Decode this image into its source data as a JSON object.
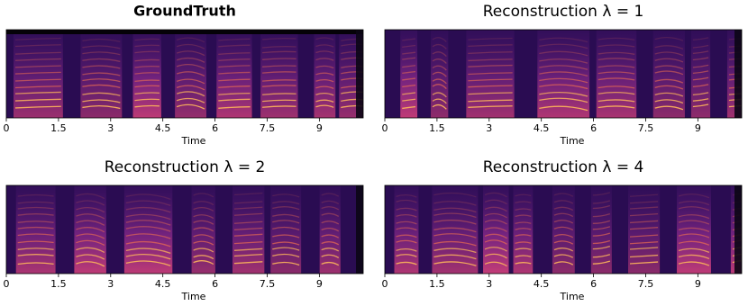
{
  "chart_data": [
    {
      "type": "spectrogram",
      "title": "GroundTruth",
      "xlabel": "Time",
      "xlim": [
        0,
        10.26
      ],
      "xticks": [
        0,
        1.5,
        3,
        4.5,
        6,
        7.5,
        9
      ]
    },
    {
      "type": "spectrogram",
      "title": "Reconstruction λ = 1",
      "xlabel": "Time",
      "xlim": [
        0,
        10.26
      ],
      "xticks": [
        0,
        1.5,
        3,
        4.5,
        6,
        7.5,
        9
      ]
    },
    {
      "type": "spectrogram",
      "title": "Reconstruction λ = 2",
      "xlabel": "Time",
      "xlim": [
        0,
        10.26
      ],
      "xticks": [
        0,
        1.5,
        3,
        4.5,
        6,
        7.5,
        9
      ]
    },
    {
      "type": "spectrogram",
      "title": "Reconstruction λ = 4",
      "xlabel": "Time",
      "xlim": [
        0,
        10.26
      ],
      "xticks": [
        0,
        1.5,
        3,
        4.5,
        6,
        7.5,
        9
      ]
    }
  ]
}
